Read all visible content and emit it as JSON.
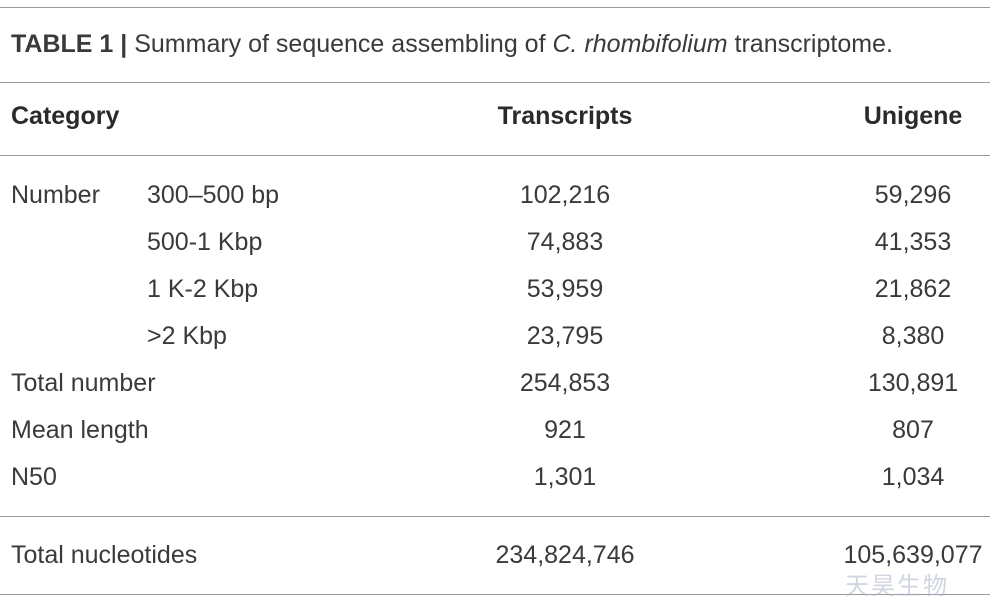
{
  "caption": {
    "label": "TABLE 1 |",
    "text_before": "Summary of sequence assembling of",
    "species": "C. rhombifolium",
    "text_after": "transcriptome."
  },
  "table": {
    "headers": [
      "Category",
      "Transcripts",
      "Unigene"
    ],
    "rows": [
      [
        "Number",
        "300–500 bp",
        "102,216",
        "59,296"
      ],
      [
        null,
        "500-1 Kbp",
        "74,883",
        "41,353"
      ],
      [
        null,
        "1 K-2 Kbp",
        "53,959",
        "21,862"
      ],
      [
        null,
        ">2 Kbp",
        "23,795",
        "8,380"
      ],
      [
        "Total number",
        null,
        "254,853",
        "130,891"
      ],
      [
        "Mean length",
        null,
        "921",
        "807"
      ],
      [
        "N50",
        null,
        "1,301",
        "1,034"
      ]
    ],
    "footer_row": [
      "Total nucleotides",
      "234,824,746",
      "105,639,077"
    ]
  },
  "watermark": "天昊生物"
}
